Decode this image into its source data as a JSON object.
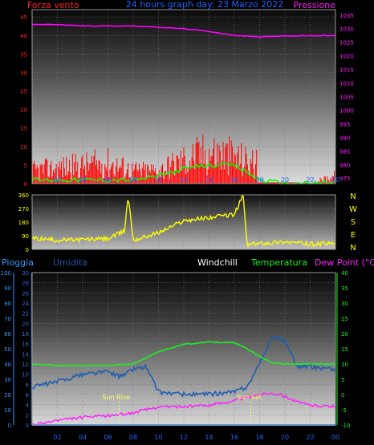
{
  "header": {
    "left_title": "Forza vento",
    "center_title": "24 hours graph day:  23 Marzo 2022",
    "right_title": "Pressione"
  },
  "hour_labels": [
    "02",
    "04",
    "06",
    "08",
    "10",
    "12",
    "14",
    "16",
    "18",
    "20",
    "22",
    "00"
  ],
  "compass_labels": [
    "N",
    "W",
    "S",
    "E",
    "N"
  ],
  "bottom_headers": {
    "pioggia": "Pioggia",
    "umidita": "Umidita",
    "windchill": "Windchill",
    "temperatura": "Temperatura",
    "dewpoint": "Dew Point (°C)"
  },
  "annotations": {
    "sunrise": "Sun Rise",
    "sunset": "Sun Set"
  },
  "colors": {
    "wind": "#ff0000",
    "gust": "#00ff00",
    "pressure": "#ff00ff",
    "direction": "#ffff00",
    "temperature": "#22ee22",
    "humidity": "#1f5fb0",
    "dewpoint": "#ff22ff",
    "rain": "#3399ff",
    "title": "#1e64ff"
  },
  "chart_data": [
    {
      "type": "line",
      "title": "24 hours graph day:  23 Marzo 2022",
      "x": [
        0,
        2,
        4,
        6,
        8,
        10,
        12,
        14,
        16,
        18,
        20,
        22,
        24
      ],
      "y_left": {
        "label": "Forza vento",
        "ticks": [
          0,
          5,
          10,
          15,
          20,
          25,
          30,
          35,
          40,
          45
        ],
        "ylim": [
          0,
          47
        ]
      },
      "y_right": {
        "label": "Pressione",
        "ticks": [
          975,
          980,
          985,
          990,
          995,
          1000,
          1005,
          1010,
          1015,
          1020,
          1025,
          1030,
          1035
        ],
        "ylim": [
          973,
          1037
        ]
      },
      "series": [
        {
          "name": "Pressione",
          "axis": "right",
          "values": [
            1031.5,
            1031.5,
            1031.0,
            1031.0,
            1031.0,
            1030.5,
            1030.0,
            1029.0,
            1027.5,
            1027.0,
            1027.3,
            1027.4,
            1027.4
          ]
        },
        {
          "axis": "left",
          "values": [
            5,
            6,
            7,
            8,
            5,
            5,
            9,
            12,
            10,
            7,
            0.2,
            0.2,
            3
          ]
        },
        {
          "axis": "left",
          "values": [
            1,
            1,
            1,
            1,
            1,
            2,
            4,
            5,
            5,
            1,
            0,
            0,
            0.5
          ]
        }
      ]
    },
    {
      "type": "line",
      "x": [
        0,
        2,
        4,
        6,
        7.3,
        7.6,
        8,
        10,
        12,
        14,
        16,
        16.7,
        17,
        18,
        20,
        22,
        24
      ],
      "y": {
        "ticks": [
          0,
          90,
          180,
          270,
          360
        ],
        "ylim": [
          0,
          360
        ]
      },
      "series": [
        {
          "values": [
            75,
            60,
            65,
            70,
            120,
            355,
            60,
            110,
            190,
            210,
            230,
            360,
            30,
            40,
            50,
            35,
            40
          ]
        }
      ]
    },
    {
      "type": "line",
      "x": [
        0,
        2,
        4,
        6,
        7,
        8,
        9,
        10,
        12,
        14,
        16,
        17,
        18,
        19,
        20,
        21,
        22,
        24
      ],
      "y_left_outer": {
        "label": "Pioggia",
        "ticks": [
          0,
          10,
          20,
          30,
          40,
          50,
          60,
          70,
          80,
          90,
          100
        ],
        "ylim": [
          0,
          100
        ]
      },
      "y_left_inner": {
        "label": "Umidita",
        "ticks": [
          0,
          2,
          4,
          6,
          8,
          10,
          12,
          14,
          16,
          18,
          20,
          22,
          24,
          26,
          28,
          30
        ],
        "ylim": [
          0,
          30
        ]
      },
      "y_right": {
        "ticks": [
          -10,
          -5,
          0,
          5,
          10,
          15,
          20,
          25,
          30,
          35,
          40
        ],
        "ylim": [
          -10,
          40
        ]
      },
      "series": [
        {
          "name": "Temperatura",
          "axis": "right",
          "values": [
            10,
            9.5,
            9.5,
            9.5,
            9.8,
            10,
            12,
            14,
            16.5,
            17.2,
            17,
            15,
            12.5,
            10.5,
            10,
            10,
            10,
            10
          ]
        },
        {
          "name": "Umidita",
          "axis": "left_inner",
          "values": [
            7.5,
            8.5,
            10,
            10.5,
            9.5,
            11,
            11.5,
            6.5,
            6,
            6,
            6.5,
            7.5,
            12,
            17.5,
            16.5,
            11.5,
            11.5,
            11
          ]
        },
        {
          "name": "Dew Point",
          "axis": "right",
          "values": [
            -10,
            -8.5,
            -7.5,
            -7,
            -6.5,
            -6,
            -5,
            -4,
            -4,
            -3.5,
            -2,
            -1,
            0,
            0.5,
            -0.5,
            -2.5,
            -3.5,
            -4
          ]
        },
        {
          "name": "Pioggia",
          "axis": "left_outer",
          "values": [
            0,
            0,
            0,
            0,
            0,
            0,
            0,
            0,
            0,
            0,
            0,
            0,
            0,
            0,
            0,
            0,
            0,
            0
          ]
        }
      ]
    }
  ]
}
